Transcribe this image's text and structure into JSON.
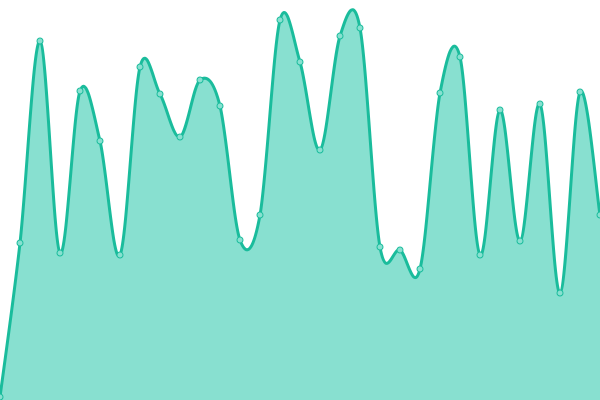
{
  "chart_data": {
    "type": "area",
    "title": "",
    "xlabel": "",
    "ylabel": "",
    "x": [
      0,
      1,
      2,
      3,
      4,
      5,
      6,
      7,
      8,
      9,
      10,
      11,
      12,
      13,
      14,
      15,
      16,
      17,
      18,
      19,
      20,
      21,
      22,
      23,
      24,
      25,
      26,
      27,
      28,
      29,
      30
    ],
    "series": [
      {
        "values": [
          3,
          157,
          359,
          147,
          309,
          259,
          145,
          333,
          306,
          263,
          320,
          294,
          160,
          185,
          380,
          338,
          250,
          364,
          372,
          153,
          150,
          131,
          307,
          343,
          145,
          290,
          159,
          296,
          107,
          308,
          185
        ]
      }
    ],
    "ylim": [
      0,
      400
    ],
    "grid": false,
    "axes_visible": false,
    "smooth": true,
    "colors": {
      "line": "#1abc9c",
      "fill": "#88e0d0",
      "marker_fill": "#88e0d0",
      "marker_stroke": "#1abc9c"
    }
  }
}
